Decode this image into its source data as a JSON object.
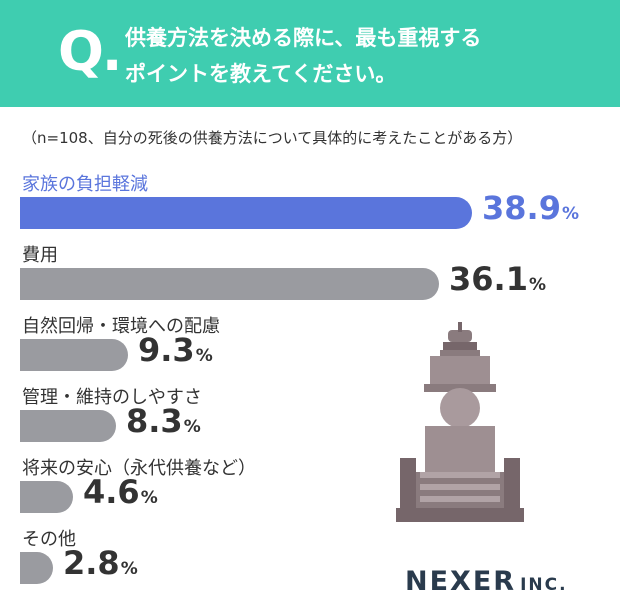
{
  "header": {
    "q_mark": "Q.",
    "question_line1": "供養方法を決める際に、最も重視する",
    "question_line2": "ポイントを教えてください。"
  },
  "note": "（n=108、自分の死後の供養方法について具体的に考えたことがある方）",
  "unit": "%",
  "logo": {
    "main": "NEXER",
    "sub": "INC."
  },
  "colors": {
    "header": "#3fcdb0",
    "highlight": "#5a75dc",
    "bar": "#9a9ba0"
  },
  "chart_data": {
    "type": "bar",
    "orientation": "horizontal",
    "categories": [
      "家族の負担軽減",
      "費用",
      "自然回帰・環境への配慮",
      "管理・維持のしやすさ",
      "将来の安心（永代供養など）",
      "その他"
    ],
    "values": [
      38.9,
      36.1,
      9.3,
      8.3,
      4.6,
      2.8
    ],
    "value_labels": [
      "38.9",
      "36.1",
      "9.3",
      "8.3",
      "4.6",
      "2.8"
    ],
    "highlight_index": 0
  }
}
